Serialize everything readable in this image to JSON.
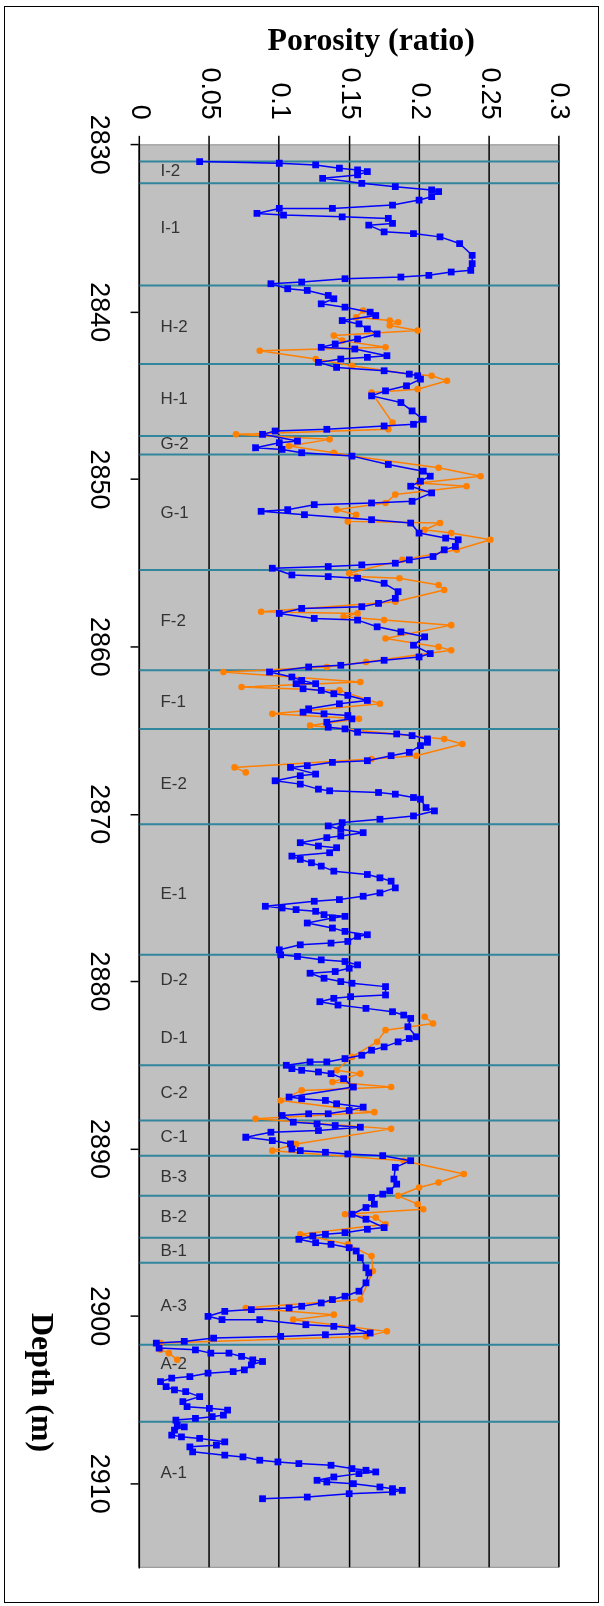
{
  "chart_data": {
    "type": "line",
    "orientation": "horizontal",
    "xlabel": "Porosity (ratio)",
    "ylabel": "Depth (m)",
    "xlim": [
      0,
      0.3
    ],
    "xticks": [
      0,
      0.05,
      0.1,
      0.15,
      0.2,
      0.25,
      0.3
    ],
    "ylim": [
      2915,
      2830
    ],
    "yticks": [
      2830,
      2840,
      2850,
      2860,
      2870,
      2880,
      2890,
      2900,
      2910
    ],
    "grid": "x",
    "series": [
      {
        "color": "#0000ff",
        "marker": "square",
        "x": [
          2831.0,
          2831.1,
          2831.2,
          2831.4,
          2831.5,
          2831.6,
          2831.8,
          2832.0,
          2832.3,
          2832.5,
          2832.7,
          2832.8,
          2833.1,
          2833.3,
          2833.6,
          2833.8,
          2833.8,
          2834.1,
          2834.2,
          2834.3,
          2834.4,
          2834.7,
          2834.8,
          2835.2,
          2835.3,
          2835.5,
          2835.9,
          2836.6,
          2837.1,
          2837.5,
          2837.6,
          2837.8,
          2837.9,
          2838.0,
          2838.2,
          2838.3,
          2838.6,
          2838.7,
          2839.0,
          2839.2,
          2839.5,
          2839.7,
          2840.0,
          2840.2,
          2840.5,
          2840.7,
          2841.0,
          2841.3,
          2841.6,
          2841.9,
          2842.1,
          2842.2,
          2842.6,
          2842.7,
          2842.8,
          2843.0,
          2843.3,
          2843.5,
          2843.7,
          2843.8,
          2844.0,
          2844.4,
          2844.7,
          2845.0,
          2845.4,
          2845.9,
          2846.4,
          2846.7,
          2846.8,
          2847.0,
          2847.1,
          2847.3,
          2847.7,
          2847.8,
          2848.1,
          2848.2,
          2848.4,
          2848.6,
          2849.1,
          2849.5,
          2849.8,
          2850.1,
          2850.4,
          2850.8,
          2851.3,
          2851.4,
          2851.5,
          2851.8,
          2851.9,
          2852.1,
          2852.4,
          2852.6,
          2853.2,
          2853.5,
          2853.6,
          2854.0,
          2854.2,
          2854.6,
          2854.8,
          2855.0,
          2855.1,
          2855.2,
          2855.3,
          2855.7,
          2855.8,
          2855.9,
          2856.2,
          2856.7,
          2857.1,
          2857.4,
          2857.6,
          2857.7,
          2858.0,
          2858.3,
          2858.4,
          2858.8,
          2859.1,
          2859.4,
          2859.9,
          2860.4,
          2860.6,
          2860.8,
          2861.1,
          2861.2,
          2861.5,
          2861.8,
          2862.0,
          2862.2,
          2862.2,
          2862.5,
          2862.6,
          2862.8,
          2862.9,
          2863.2,
          2863.4,
          2863.7,
          2863.9,
          2864.0,
          2864.1,
          2864.3,
          2864.5,
          2864.8,
          2864.9,
          2865.1,
          2865.2,
          2865.3,
          2865.5,
          2865.7,
          2865.9,
          2866.3,
          2866.5,
          2866.8,
          2866.9,
          2867.1,
          2867.2,
          2867.6,
          2867.7,
          2868.0,
          2868.2,
          2868.5,
          2868.6,
          2868.7,
          2868.8,
          2869.0,
          2869.1,
          2869.6,
          2869.8,
          2870.1,
          2870.3,
          2870.5,
          2870.7,
          2870.9,
          2871.1,
          2871.3,
          2871.4,
          2871.7,
          2871.9,
          2872.0,
          2872.3,
          2872.5,
          2872.7,
          2872.9,
          2873.1,
          2873.4,
          2873.6,
          2873.8,
          2874.0,
          2874.4,
          2874.7,
          2874.9,
          2875.1,
          2875.2,
          2875.5,
          2875.6,
          2875.7,
          2875.8,
          2876.0,
          2876.1,
          2876.2,
          2876.5,
          2876.8,
          2877.0,
          2877.2,
          2877.3,
          2877.6,
          2877.7,
          2877.8,
          2878.1,
          2878.4,
          2878.5,
          2878.7,
          2878.8,
          2879.0,
          2879.2,
          2879.4,
          2879.5,
          2879.8,
          2880.0,
          2880.1,
          2880.3,
          2880.8,
          2880.9,
          2881.0,
          2881.2,
          2881.4,
          2881.6,
          2881.8,
          2882.0,
          2882.2,
          2882.7,
          2883.3,
          2883.4,
          2883.6,
          2883.9,
          2884.1,
          2884.4,
          2884.6,
          2884.8,
          2884.8,
          2885.0,
          2885.2,
          2885.3,
          2885.4,
          2885.5,
          2885.8,
          2886.3,
          2886.9,
          2887.0,
          2887.1,
          2887.3,
          2887.5,
          2887.7,
          2887.9,
          2887.9,
          2888.0,
          2888.4,
          2888.5,
          2888.6,
          2888.7,
          2888.9,
          2889.0,
          2889.3,
          2889.5,
          2889.7,
          2890.0,
          2890.1,
          2890.2,
          2890.3,
          2890.4,
          2890.7,
          2891.1,
          2891.8,
          2892.1,
          2892.5,
          2892.7,
          2892.9,
          2893.3,
          2893.5,
          2893.9,
          2894.2,
          2894.7,
          2894.8,
          2895.0,
          2895.1,
          2895.2,
          2895.4,
          2895.6,
          2895.7,
          2895.9,
          2896.1,
          2896.5,
          2897.1,
          2897.4,
          2898.0,
          2898.5,
          2898.8,
          2899.0,
          2899.2,
          2899.4,
          2899.5,
          2899.6,
          2899.7,
          2900.0,
          2900.2,
          2900.2,
          2900.5,
          2900.6,
          2900.7,
          2901.0,
          2901.1,
          2901.2,
          2901.3,
          2901.5,
          2901.6,
          2901.9,
          2902.0,
          2902.2,
          2902.2,
          2902.4,
          2902.6,
          2902.7,
          2902.9,
          2903.2,
          2903.3,
          2903.4,
          2903.6,
          2903.7,
          2903.9,
          2904.2,
          2904.4,
          2904.5,
          2904.8,
          2905.1,
          2905.4,
          2905.5,
          2905.6,
          2905.9,
          2906.0,
          2906.1,
          2906.2,
          2906.5,
          2906.6,
          2906.8,
          2907.1,
          2907.2,
          2907.3,
          2907.5,
          2907.7,
          2907.8,
          2908.1,
          2908.3,
          2908.4,
          2908.6,
          2908.7,
          2908.8,
          2908.9,
          2909.1,
          2909.2,
          2909.3,
          2909.4,
          2909.6,
          2909.8,
          2909.9,
          2910.0,
          2910.2,
          2910.3,
          2910.4,
          2910.5,
          2910.6,
          2910.8,
          2910.9
        ],
        "values": [
          0.043,
          0.1,
          0.126,
          0.143,
          0.156,
          0.163,
          0.156,
          0.131,
          0.159,
          0.183,
          0.209,
          0.214,
          0.209,
          0.2,
          0.181,
          0.138,
          0.1,
          0.084,
          0.103,
          0.145,
          0.178,
          0.181,
          0.164,
          0.175,
          0.196,
          0.215,
          0.229,
          0.238,
          0.238,
          0.237,
          0.223,
          0.207,
          0.187,
          0.147,
          0.116,
          0.094,
          0.106,
          0.12,
          0.135,
          0.139,
          0.13,
          0.147,
          0.165,
          0.169,
          0.145,
          0.157,
          0.163,
          0.17,
          0.156,
          0.14,
          0.13,
          0.154,
          0.177,
          0.163,
          0.144,
          0.128,
          0.141,
          0.175,
          0.193,
          0.199,
          0.201,
          0.191,
          0.176,
          0.166,
          0.187,
          0.195,
          0.203,
          0.196,
          0.175,
          0.134,
          0.097,
          0.088,
          0.113,
          0.1,
          0.083,
          0.102,
          0.116,
          0.152,
          0.178,
          0.203,
          0.208,
          0.201,
          0.194,
          0.209,
          0.195,
          0.166,
          0.125,
          0.106,
          0.087,
          0.118,
          0.166,
          0.194,
          0.2,
          0.219,
          0.228,
          0.226,
          0.218,
          0.21,
          0.193,
          0.183,
          0.159,
          0.135,
          0.095,
          0.109,
          0.135,
          0.156,
          0.175,
          0.185,
          0.183,
          0.171,
          0.159,
          0.116,
          0.1,
          0.125,
          0.156,
          0.17,
          0.187,
          0.204,
          0.196,
          0.208,
          0.2,
          0.175,
          0.144,
          0.121,
          0.093,
          0.109,
          0.116,
          0.126,
          0.112,
          0.117,
          0.13,
          0.139,
          0.149,
          0.163,
          0.143,
          0.121,
          0.117,
          0.132,
          0.149,
          0.152,
          0.134,
          0.135,
          0.147,
          0.156,
          0.184,
          0.195,
          0.206,
          0.206,
          0.201,
          0.193,
          0.18,
          0.163,
          0.138,
          0.12,
          0.108,
          0.126,
          0.115,
          0.097,
          0.115,
          0.128,
          0.136,
          0.171,
          0.183,
          0.196,
          0.201,
          0.205,
          0.211,
          0.196,
          0.172,
          0.145,
          0.135,
          0.144,
          0.16,
          0.144,
          0.134,
          0.115,
          0.128,
          0.141,
          0.136,
          0.109,
          0.115,
          0.123,
          0.13,
          0.139,
          0.163,
          0.172,
          0.18,
          0.183,
          0.172,
          0.16,
          0.143,
          0.125,
          0.09,
          0.102,
          0.112,
          0.126,
          0.132,
          0.147,
          0.138,
          0.12,
          0.138,
          0.147,
          0.163,
          0.156,
          0.149,
          0.137,
          0.115,
          0.1,
          0.101,
          0.113,
          0.13,
          0.147,
          0.156,
          0.15,
          0.14,
          0.122,
          0.132,
          0.144,
          0.152,
          0.176,
          0.176,
          0.151,
          0.139,
          0.129,
          0.142,
          0.162,
          0.181,
          0.189,
          0.194,
          0.192,
          0.198,
          0.193,
          0.185,
          0.175,
          0.166,
          0.159,
          0.147,
          0.134,
          0.122,
          0.105,
          0.109,
          0.116,
          0.128,
          0.137,
          0.146,
          0.153,
          0.107,
          0.116,
          0.133,
          0.141,
          0.16,
          0.15,
          0.135,
          0.121,
          0.102,
          0.11,
          0.127,
          0.14,
          0.158,
          0.128,
          0.094,
          0.076,
          0.095,
          0.108,
          0.109,
          0.115,
          0.133,
          0.149,
          0.174,
          0.194,
          0.183,
          0.182,
          0.184,
          0.179,
          0.174,
          0.166,
          0.168,
          0.162,
          0.152,
          0.162,
          0.175,
          0.163,
          0.147,
          0.133,
          0.124,
          0.114,
          0.126,
          0.137,
          0.15,
          0.155,
          0.158,
          0.162,
          0.164,
          0.162,
          0.157,
          0.147,
          0.138,
          0.13,
          0.116,
          0.107,
          0.08,
          0.061,
          0.049,
          0.059,
          0.086,
          0.119,
          0.139,
          0.152,
          0.165,
          0.133,
          0.101,
          0.053,
          0.032,
          0.012,
          0.014,
          0.04,
          0.051,
          0.064,
          0.073,
          0.081,
          0.088,
          0.08,
          0.075,
          0.067,
          0.049,
          0.036,
          0.023,
          0.015,
          0.019,
          0.025,
          0.033,
          0.043,
          0.031,
          0.034,
          0.05,
          0.063,
          0.06,
          0.052,
          0.04,
          0.026,
          0.027,
          0.032,
          0.025,
          0.023,
          0.03,
          0.043,
          0.061,
          0.055,
          0.036,
          0.038,
          0.061,
          0.074,
          0.086,
          0.099,
          0.114,
          0.137,
          0.152,
          0.162,
          0.169,
          0.157,
          0.139,
          0.127,
          0.134,
          0.153,
          0.172,
          0.181,
          0.188,
          0.181,
          0.15,
          0.12,
          0.088
        ]
      },
      {
        "color": "#ff7f00",
        "marker": "circle",
        "x": [
          2839.9,
          2840.3,
          2840.5,
          2840.6,
          2840.8,
          2841.1,
          2841.4,
          2841.7,
          2842.1,
          2842.3,
          2842.8,
          2843.2,
          2843.7,
          2843.8,
          2844.1,
          2844.6,
          2844.8,
          2846.6,
          2847.0,
          2847.3,
          2847.6,
          2848.0,
          2848.4,
          2848.6,
          2849.3,
          2849.8,
          2850.2,
          2850.4,
          2850.9,
          2851.4,
          2851.8,
          2852.1,
          2852.5,
          2852.6,
          2853.0,
          2853.2,
          2853.6,
          2854.2,
          2854.8,
          2855.6,
          2855.8,
          2855.9,
          2856.3,
          2856.6,
          2857.3,
          2857.9,
          2858.0,
          2858.2,
          2858.4,
          2858.7,
          2859.5,
          2860.0,
          2860.2,
          2860.9,
          2861.2,
          2861.5,
          2862.1,
          2862.4,
          2862.6,
          2863.4,
          2864.0,
          2864.3,
          2864.7,
          2865.5,
          2865.8,
          2866.5,
          2866.7,
          2867.2,
          2867.5,
          2875.0,
          2882.1,
          2882.5,
          2882.9,
          2883.6,
          2884.5,
          2885.3,
          2885.5,
          2886.0,
          2886.3,
          2886.5,
          2887.1,
          2887.8,
          2888.2,
          2888.8,
          2889.7,
          2890.1,
          2890.7,
          2891.5,
          2892.0,
          2892.3,
          2892.8,
          2893.3,
          2893.6,
          2893.9,
          2894.1,
          2894.5,
          2895.1,
          2895.7,
          2896.4,
          2897.3,
          2899.0,
          2899.5,
          2899.9,
          2900.2,
          2900.9,
          2901.2,
          2901.6,
          2902.0,
          2902.2,
          2902.6
        ],
        "values": [
          0.16,
          0.155,
          0.179,
          0.185,
          0.179,
          0.199,
          0.139,
          0.145,
          0.176,
          0.086,
          0.126,
          0.152,
          0.193,
          0.209,
          0.22,
          0.199,
          0.166,
          0.181,
          0.178,
          0.069,
          0.136,
          0.107,
          0.139,
          0.152,
          0.214,
          0.244,
          0.2,
          0.234,
          0.183,
          0.176,
          0.141,
          0.155,
          0.149,
          0.215,
          0.204,
          0.223,
          0.251,
          0.227,
          0.188,
          0.15,
          0.155,
          0.186,
          0.214,
          0.218,
          0.183,
          0.087,
          0.156,
          0.146,
          0.175,
          0.223,
          0.176,
          0.214,
          0.223,
          0.162,
          0.134,
          0.06,
          0.158,
          0.073,
          0.143,
          0.172,
          0.095,
          0.157,
          0.122,
          0.218,
          0.231,
          0.198,
          0.166,
          0.068,
          0.076,
          null,
          0.204,
          0.21,
          0.176,
          0.17,
          0.152,
          0.141,
          0.158,
          0.138,
          0.18,
          0.116,
          0.101,
          0.168,
          0.083,
          0.18,
          0.112,
          0.095,
          0.189,
          0.232,
          0.214,
          0.2,
          0.185,
          0.199,
          0.203,
          0.147,
          0.169,
          0.176,
          0.115,
          0.149,
          0.166,
          0.167,
          0.158,
          0.076,
          0.139,
          0.11,
          0.177,
          0.162,
          0.015,
          0.015,
          0.021,
          0.027
        ]
      }
    ],
    "ref_lines": [
      {
        "axis": "y",
        "value": 2831.0,
        "color": "#31859c"
      },
      {
        "axis": "y",
        "value": 2832.3,
        "color": "#31859c"
      },
      {
        "axis": "y",
        "value": 2838.4,
        "color": "#31859c"
      },
      {
        "axis": "y",
        "value": 2843.1,
        "color": "#31859c"
      },
      {
        "axis": "y",
        "value": 2847.4,
        "color": "#31859c"
      },
      {
        "axis": "y",
        "value": 2848.5,
        "color": "#31859c"
      },
      {
        "axis": "y",
        "value": 2855.4,
        "color": "#31859c"
      },
      {
        "axis": "y",
        "value": 2861.4,
        "color": "#31859c"
      },
      {
        "axis": "y",
        "value": 2864.9,
        "color": "#31859c"
      },
      {
        "axis": "y",
        "value": 2870.6,
        "color": "#31859c"
      },
      {
        "axis": "y",
        "value": 2878.4,
        "color": "#31859c"
      },
      {
        "axis": "y",
        "value": 2885.0,
        "color": "#31859c"
      },
      {
        "axis": "y",
        "value": 2888.3,
        "color": "#31859c"
      },
      {
        "axis": "y",
        "value": 2890.4,
        "color": "#31859c"
      },
      {
        "axis": "y",
        "value": 2892.8,
        "color": "#31859c"
      },
      {
        "axis": "y",
        "value": 2895.3,
        "color": "#31859c"
      },
      {
        "axis": "y",
        "value": 2896.8,
        "color": "#31859c"
      },
      {
        "axis": "y",
        "value": 2901.7,
        "color": "#31859c"
      },
      {
        "axis": "y",
        "value": 2906.3,
        "color": "#31859c"
      }
    ],
    "annotations": [
      "I-2",
      "I-1",
      "H-2",
      "H-1",
      "G-2",
      "G-1",
      "F-2",
      "F-1",
      "E-2",
      "E-1",
      "D-2",
      "D-1",
      "C-2",
      "C-1",
      "B-3",
      "B-2",
      "B-1",
      "A-3",
      "A-2",
      "A-1"
    ]
  }
}
